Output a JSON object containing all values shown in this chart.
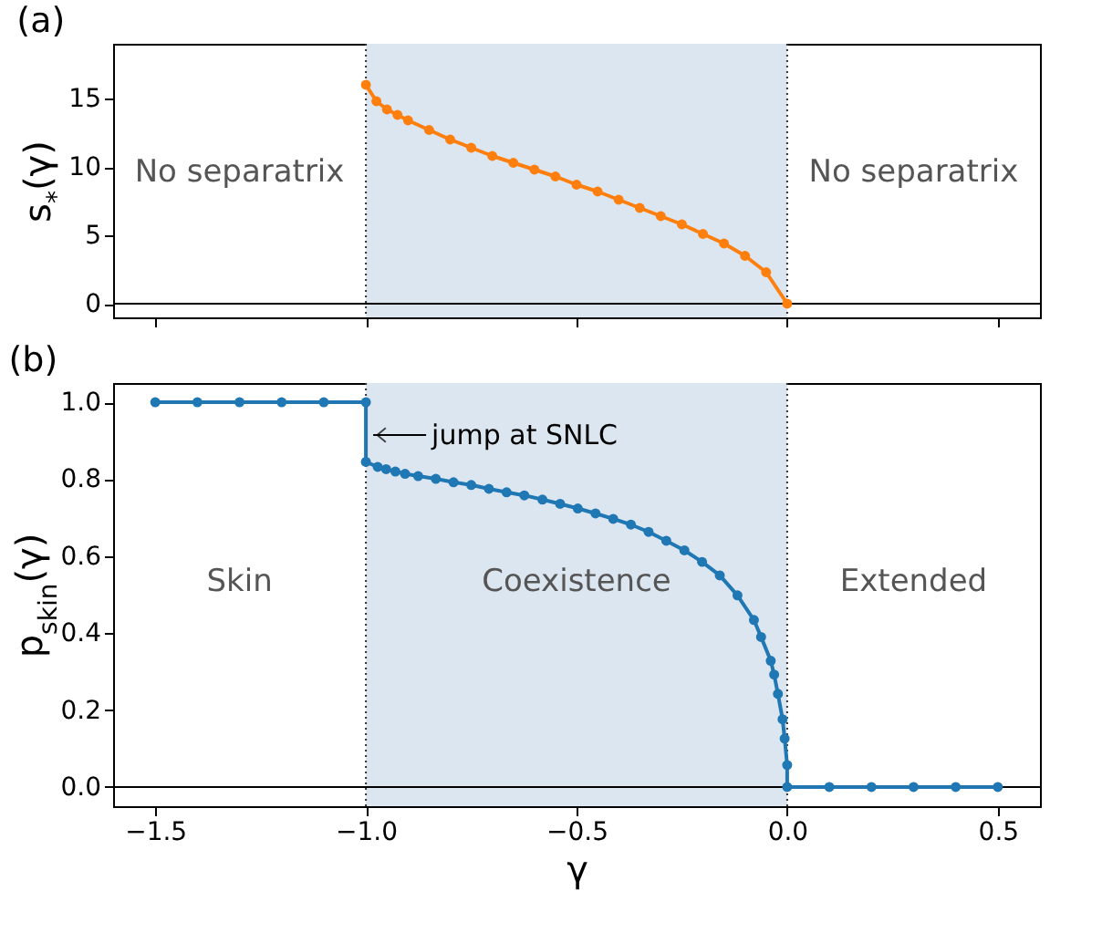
{
  "chart_data": [
    {
      "type": "line",
      "title": "(a)",
      "ylabel": "s$_{*}$(γ)",
      "xlim": [
        -1.6,
        0.6
      ],
      "ylim": [
        -1,
        19
      ],
      "xticks": [
        -1.5,
        -1,
        -0.5,
        0,
        0.5
      ],
      "yticks": [
        0,
        5,
        10,
        15
      ],
      "tick_labels": "y",
      "marker": "circle",
      "series": [
        {
          "color": "#ff7f0e",
          "x": [
            -1,
            -0.975,
            -0.95,
            -0.925,
            -0.9,
            -0.85,
            -0.8,
            -0.75,
            -0.7,
            -0.65,
            -0.6,
            -0.55,
            -0.5,
            -0.45,
            -0.4,
            -0.35,
            -0.3,
            -0.25,
            -0.2,
            -0.15,
            -0.1,
            -0.05,
            0
          ],
          "values": [
            16.0,
            14.8,
            14.2,
            13.8,
            13.4,
            12.7,
            12.0,
            11.4,
            10.8,
            10.3,
            9.8,
            9.3,
            8.7,
            8.2,
            7.6,
            7.0,
            6.4,
            5.8,
            5.1,
            4.4,
            3.5,
            2.3,
            0
          ]
        }
      ],
      "bands": [
        {
          "axis": "x",
          "from": -1,
          "to": 0,
          "color": "#dce6f1"
        }
      ],
      "ref_lines": [
        {
          "axis": "y",
          "value": 0,
          "color": "#000000",
          "line_style": "solid"
        },
        {
          "axis": "x",
          "value": -1,
          "color": "#333333",
          "line_style": "dotted"
        },
        {
          "axis": "x",
          "value": 0,
          "color": "#333333",
          "line_style": "dotted"
        }
      ],
      "annotations": [
        "No separatrix",
        "No separatrix"
      ]
    },
    {
      "type": "line",
      "title": "(b)",
      "xlabel": "γ",
      "ylabel": "p$_{skin}$(γ)",
      "xlim": [
        -1.6,
        0.6
      ],
      "ylim": [
        -0.05,
        1.05
      ],
      "xticks": [
        {
          "value": -1.5,
          "label": "−1.5"
        },
        {
          "value": -1,
          "label": "−1.0"
        },
        {
          "value": -0.5,
          "label": "−0.5"
        },
        {
          "value": 0,
          "label": "0.0"
        },
        {
          "value": 0.5,
          "label": "0.5"
        }
      ],
      "yticks": [
        {
          "value": 0,
          "label": "0.0"
        },
        {
          "value": 0.2,
          "label": "0.2"
        },
        {
          "value": 0.4,
          "label": "0.4"
        },
        {
          "value": 0.6,
          "label": "0.6"
        },
        {
          "value": 0.8,
          "label": "0.8"
        },
        {
          "value": 1,
          "label": "1.0"
        }
      ],
      "marker": "circle",
      "series": [
        {
          "color": "#1f77b4",
          "x": [
            -1.5,
            -1.4,
            -1.3,
            -1.2,
            -1.1,
            -1,
            -1,
            -0.972,
            -0.952,
            -0.93,
            -0.907,
            -0.876,
            -0.834,
            -0.792,
            -0.75,
            -0.708,
            -0.666,
            -0.624,
            -0.581,
            -0.539,
            -0.497,
            -0.455,
            -0.413,
            -0.371,
            -0.329,
            -0.287,
            -0.244,
            -0.202,
            -0.16,
            -0.118,
            -0.079,
            -0.062,
            -0.039,
            -0.031,
            -0.022,
            -0.011,
            -0.006,
            0,
            0,
            0.1,
            0.2,
            0.3,
            0.4,
            0.5
          ],
          "values": [
            1,
            1,
            1,
            1,
            1,
            1,
            0.845,
            0.832,
            0.826,
            0.82,
            0.814,
            0.808,
            0.801,
            0.792,
            0.785,
            0.775,
            0.766,
            0.758,
            0.747,
            0.736,
            0.724,
            0.711,
            0.697,
            0.682,
            0.663,
            0.64,
            0.615,
            0.585,
            0.55,
            0.498,
            0.434,
            0.39,
            0.328,
            0.292,
            0.242,
            0.176,
            0.126,
            0.057,
            0,
            0,
            0,
            0,
            0,
            0
          ]
        }
      ],
      "bands": [
        {
          "axis": "x",
          "from": -1,
          "to": 0,
          "color": "#dce6f1"
        }
      ],
      "ref_lines": [
        {
          "axis": "y",
          "value": 0,
          "color": "#000000",
          "line_style": "solid"
        },
        {
          "axis": "x",
          "value": -1,
          "color": "#333333",
          "line_style": "dotted"
        },
        {
          "axis": "x",
          "value": 0,
          "color": "#333333",
          "line_style": "dotted"
        }
      ],
      "annotations": [
        "Skin",
        "Coexistence",
        "Extended",
        {
          "text": "jump at SNLC",
          "x": -1,
          "y": 0.915
        }
      ]
    }
  ]
}
